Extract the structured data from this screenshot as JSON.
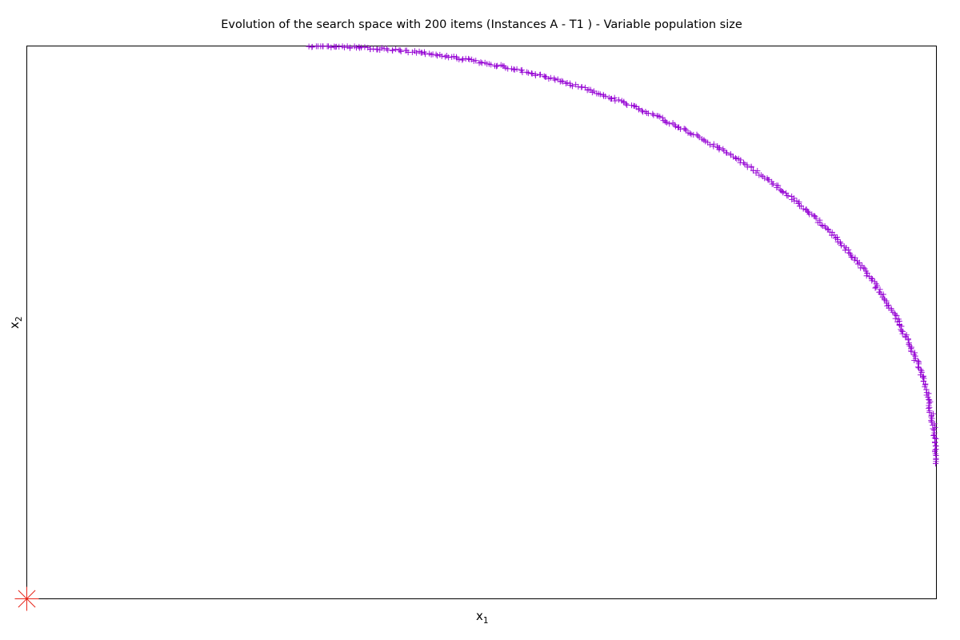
{
  "colors": {
    "series": "#9400d3",
    "origin_marker": "#e8261a",
    "frame": "#000000",
    "background": "#ffffff"
  },
  "chart_data": {
    "type": "scatter",
    "title": "Evolution of the search space with 200 items (Instances A - T1 ) - Variable population size",
    "xlabel": "x",
    "xlabel_sub": "1",
    "ylabel": "x",
    "ylabel_sub": "2",
    "xlim": [
      0,
      1
    ],
    "ylim": [
      0,
      1
    ],
    "grid": false,
    "ticks_shown": false,
    "legend": "none",
    "markers": {
      "series": "plus",
      "origin": "star"
    },
    "origin_point": {
      "x": 0,
      "y": 0
    },
    "series": [
      {
        "arc": {
          "center": [
            0.31,
            0.24
          ],
          "radius_x": 0.69,
          "radius_y": 0.76,
          "t_start_deg": 0.3,
          "t_end_deg": 90,
          "count": 420
        },
        "points": []
      }
    ]
  }
}
